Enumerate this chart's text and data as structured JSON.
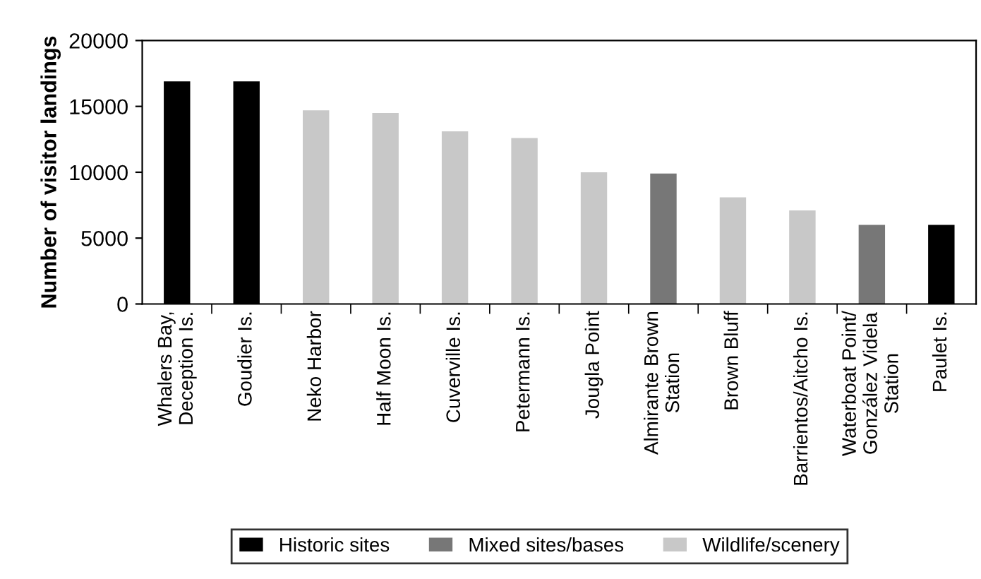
{
  "chart_data": {
    "type": "bar",
    "ylabel": "Number of visitor landings",
    "categories": [
      "Whalers Bay,\nDeception Is.",
      "Goudier Is.",
      "Neko Harbor",
      "Half Moon Is.",
      "Cuverville Is.",
      "Petermann Is.",
      "Jougla Point",
      "Almirante Brown\nStation",
      "Brown Bluff",
      "Barrientos/Aitcho Is.",
      "Waterboat Point/\nGonzález Videla\nStation",
      "Paulet Is."
    ],
    "series": [
      {
        "name": "Historic sites",
        "color": "#000000",
        "values": [
          16900,
          16900,
          null,
          null,
          null,
          null,
          null,
          null,
          null,
          null,
          null,
          6000
        ]
      },
      {
        "name": "Mixed sites/bases",
        "color": "#777777",
        "values": [
          null,
          null,
          null,
          null,
          null,
          null,
          null,
          9900,
          null,
          null,
          6000,
          null
        ]
      },
      {
        "name": "Wildlife/scenery",
        "color": "#c8c8c8",
        "values": [
          null,
          null,
          14700,
          14500,
          13100,
          12600,
          10000,
          null,
          8100,
          7100,
          null,
          null
        ]
      }
    ],
    "ylim": [
      0,
      20000
    ],
    "yticks": [
      0,
      5000,
      10000,
      15000,
      20000
    ],
    "legend": "bottom"
  }
}
